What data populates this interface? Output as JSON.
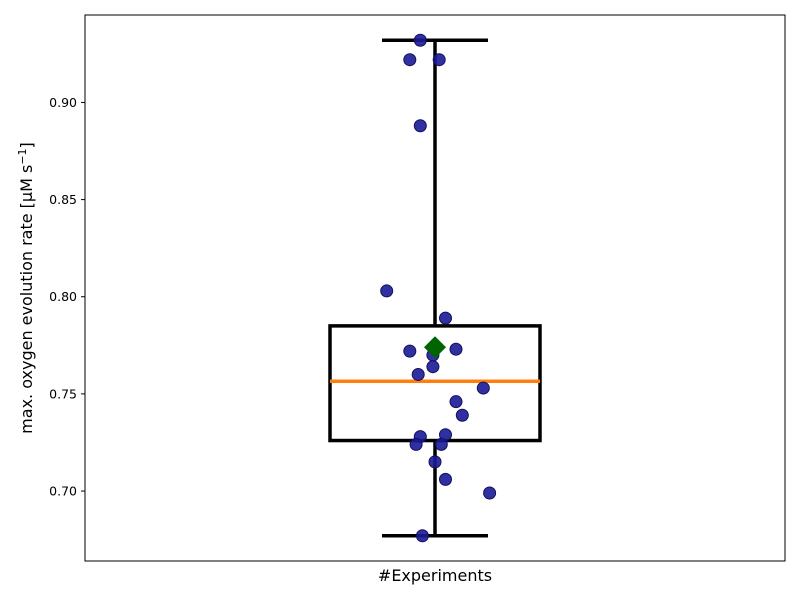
{
  "chart_data": {
    "type": "box",
    "title": "",
    "xlabel": "#Experiments",
    "ylabel_main": "max. oxygen evolution rate [μM s",
    "ylabel_sup": "−1",
    "ylabel_close": "]",
    "ylim": [
      0.664,
      0.945
    ],
    "yticks": [
      0.7,
      0.75,
      0.8,
      0.85,
      0.9
    ],
    "ytick_labels": [
      "0.70",
      "0.75",
      "0.80",
      "0.85",
      "0.90"
    ],
    "grid": false,
    "box": {
      "q1": 0.726,
      "median": 0.7565,
      "q3": 0.785,
      "whisker_low": 0.677,
      "whisker_high": 0.932,
      "mean": 0.774
    },
    "colors": {
      "box": "#000000",
      "median": "#ff7f0e",
      "points": "#1a1a99",
      "mean": "#006400"
    },
    "points": [
      {
        "x": -0.07,
        "y": 0.932
      },
      {
        "x": -0.12,
        "y": 0.922
      },
      {
        "x": 0.02,
        "y": 0.922
      },
      {
        "x": -0.07,
        "y": 0.888
      },
      {
        "x": -0.23,
        "y": 0.803
      },
      {
        "x": 0.05,
        "y": 0.789
      },
      {
        "x": 0.1,
        "y": 0.773
      },
      {
        "x": -0.12,
        "y": 0.772
      },
      {
        "x": -0.01,
        "y": 0.77
      },
      {
        "x": -0.01,
        "y": 0.764
      },
      {
        "x": -0.08,
        "y": 0.76
      },
      {
        "x": 0.23,
        "y": 0.753
      },
      {
        "x": 0.1,
        "y": 0.746
      },
      {
        "x": 0.13,
        "y": 0.739
      },
      {
        "x": -0.07,
        "y": 0.728
      },
      {
        "x": 0.05,
        "y": 0.729
      },
      {
        "x": -0.09,
        "y": 0.724
      },
      {
        "x": 0.03,
        "y": 0.724
      },
      {
        "x": 0.0,
        "y": 0.715
      },
      {
        "x": 0.05,
        "y": 0.706
      },
      {
        "x": 0.26,
        "y": 0.699
      },
      {
        "x": -0.06,
        "y": 0.677
      }
    ]
  }
}
